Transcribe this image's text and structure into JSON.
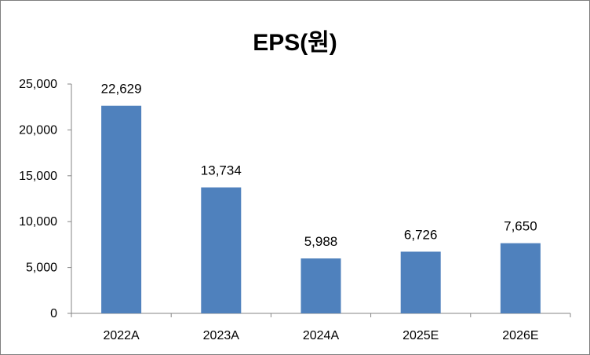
{
  "chart_data": {
    "type": "bar",
    "title": "EPS(원)",
    "categories": [
      "2022A",
      "2023A",
      "2024A",
      "2025E",
      "2026E"
    ],
    "values": [
      22629,
      13734,
      5988,
      6726,
      7650
    ],
    "data_labels": [
      "22,629",
      "13,734",
      "5,988",
      "6,726",
      "7,650"
    ],
    "ylim": [
      0,
      25000
    ],
    "yticks": [
      0,
      5000,
      10000,
      15000,
      20000,
      25000
    ],
    "ytick_labels": [
      "0",
      "5,000",
      "10,000",
      "15,000",
      "20,000",
      "25,000"
    ],
    "xlabel": "",
    "ylabel": "",
    "grid": false,
    "legend": "none",
    "bar_color": "#4f81bd"
  }
}
